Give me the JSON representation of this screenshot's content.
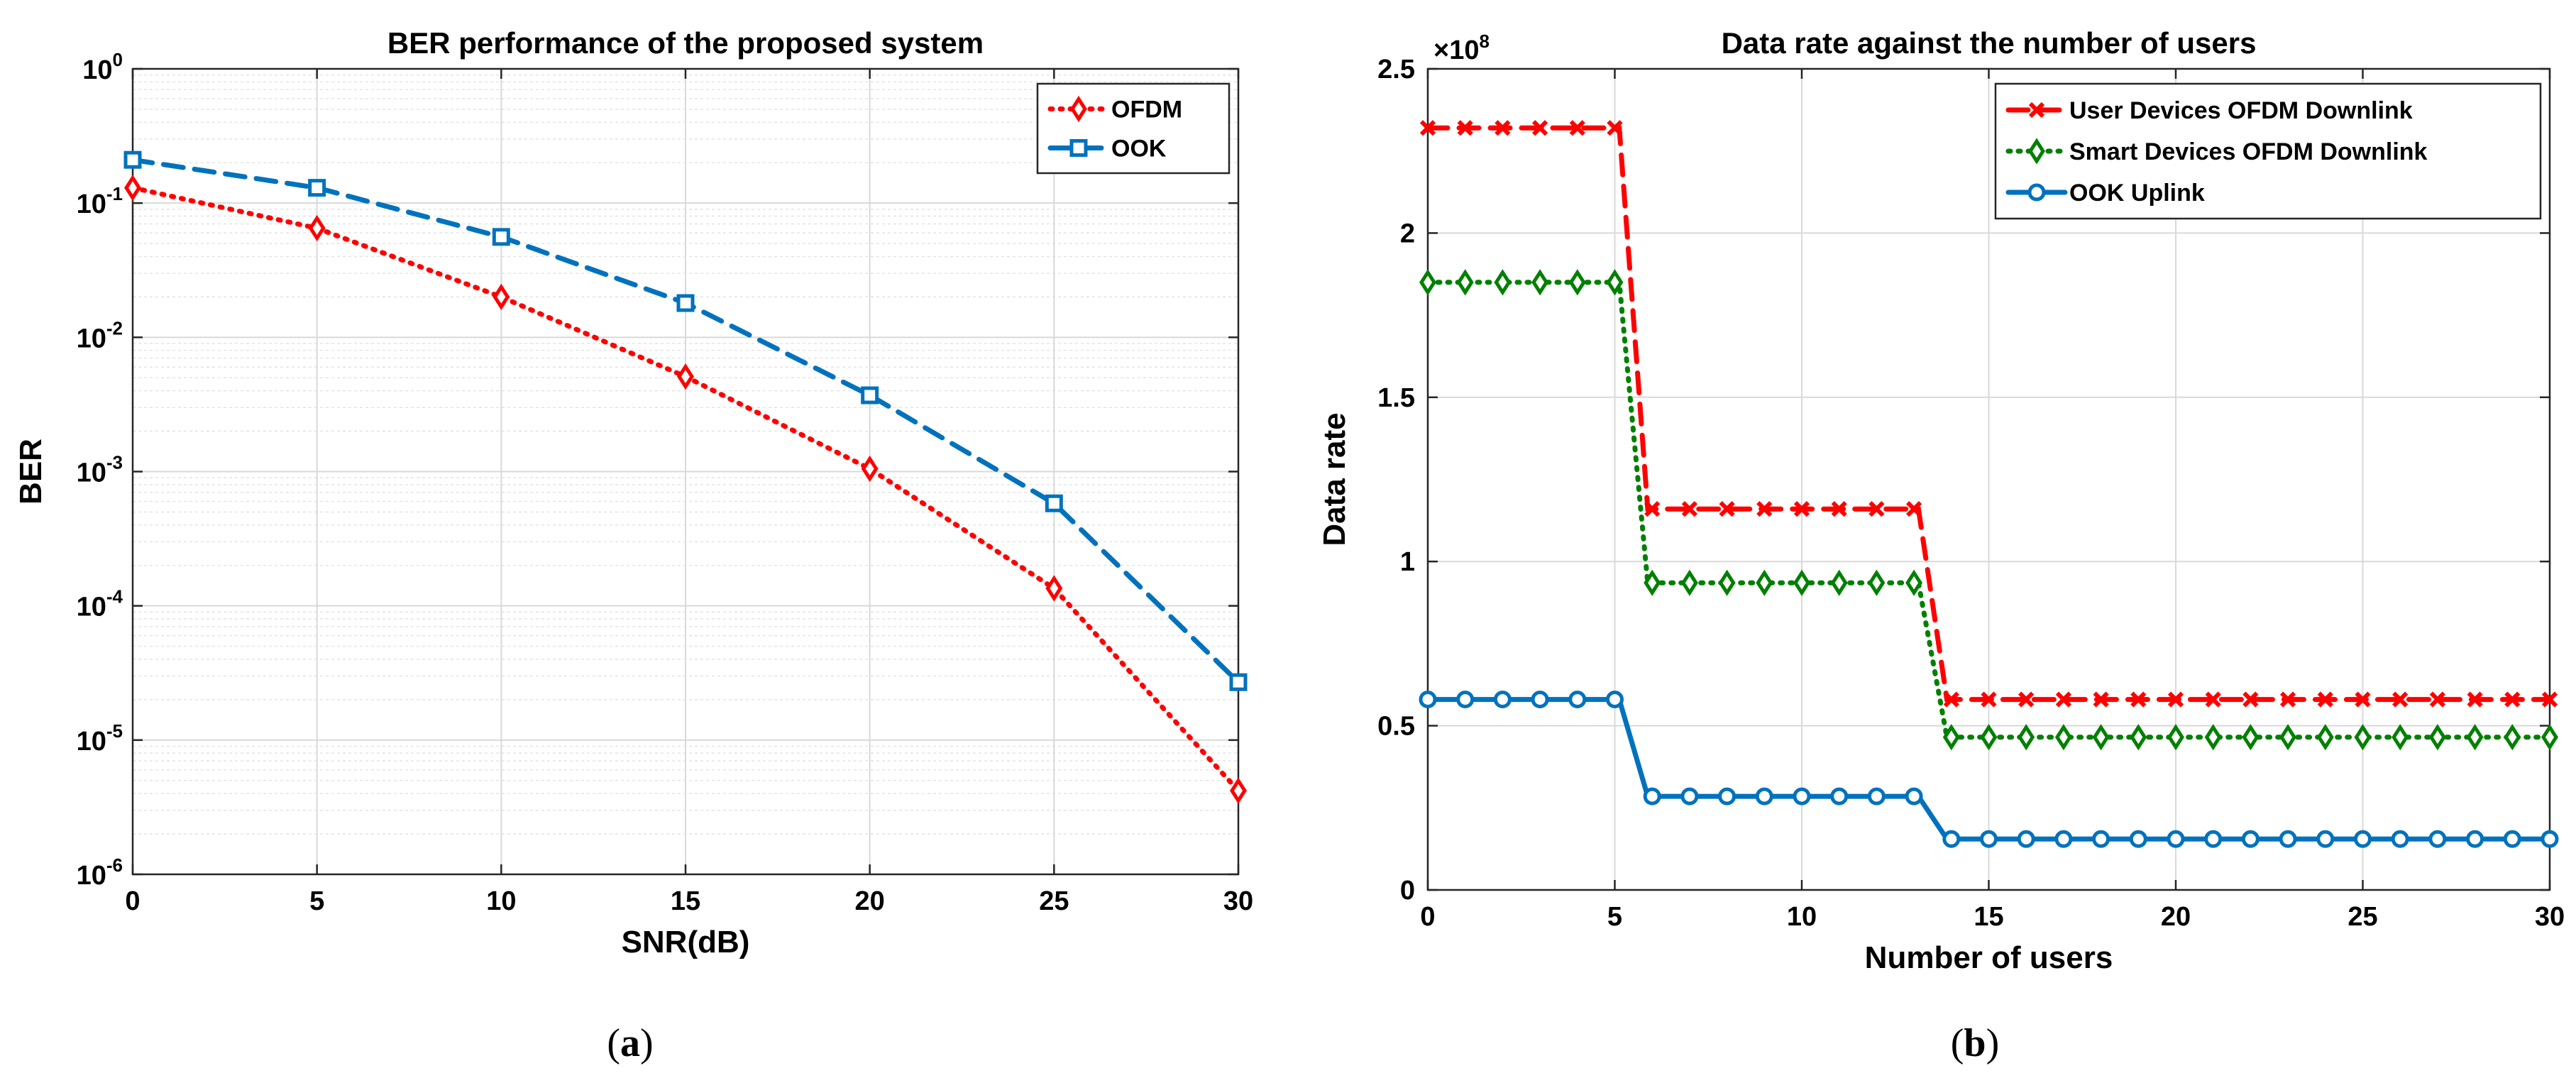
{
  "captions": [
    {
      "open": "(",
      "letter": "a",
      "close": ")"
    },
    {
      "open": "(",
      "letter": "b",
      "close": ")"
    }
  ],
  "chart_data": [
    {
      "type": "line",
      "title": "BER performance of the proposed system",
      "xlabel": "SNR(dB)",
      "ylabel": "BER",
      "yscale": "log",
      "xlim": [
        0,
        30
      ],
      "ylim": [
        1e-06,
        1
      ],
      "grid": true,
      "legend_position": "top-right",
      "x_ticks": [
        0,
        5,
        10,
        15,
        20,
        25,
        30
      ],
      "y_ticks": [
        {
          "base": "10",
          "exp": "-6",
          "value": 1e-06
        },
        {
          "base": "10",
          "exp": "-5",
          "value": 1e-05
        },
        {
          "base": "10",
          "exp": "-4",
          "value": 0.0001
        },
        {
          "base": "10",
          "exp": "-3",
          "value": 0.001
        },
        {
          "base": "10",
          "exp": "-2",
          "value": 0.01
        },
        {
          "base": "10",
          "exp": "-1",
          "value": 0.1
        },
        {
          "base": "10",
          "exp": "0",
          "value": 1
        }
      ],
      "series": [
        {
          "name": "OFDM",
          "color": "#ff0000",
          "dash": "dotted",
          "marker": "diamond",
          "x": [
            0,
            5,
            10,
            15,
            20,
            25,
            30
          ],
          "y": [
            0.13,
            0.065,
            0.02,
            0.0051,
            0.00105,
            0.000135,
            4.2e-06
          ]
        },
        {
          "name": "OOK",
          "color": "#0072bd",
          "dash": "dashed",
          "marker": "square",
          "x": [
            0,
            5,
            10,
            15,
            20,
            25,
            30
          ],
          "y": [
            0.21,
            0.13,
            0.056,
            0.018,
            0.0037,
            0.00058,
            2.7e-05
          ]
        }
      ]
    },
    {
      "type": "line",
      "title": "Data rate against the number of users",
      "xlabel": "Number of users",
      "ylabel": "Data rate",
      "yscale": "linear",
      "exponent_label": {
        "prefix": "×10",
        "exp": "8"
      },
      "scale": 100000000.0,
      "xlim": [
        0,
        30
      ],
      "ylim": [
        0,
        250000000
      ],
      "grid": true,
      "legend_position": "top-right",
      "x_ticks": [
        "0",
        "5",
        "10",
        "15",
        "20",
        "25",
        "30"
      ],
      "x_tick_values": [
        0,
        5,
        10,
        15,
        20,
        25,
        30
      ],
      "y_ticks": [
        "0",
        "0.5",
        "1",
        "1.5",
        "2",
        "2.5"
      ],
      "y_tick_values": [
        0,
        50000000,
        100000000,
        150000000,
        200000000,
        250000000
      ],
      "series": [
        {
          "name": "User Devices OFDM Downlink",
          "color": "#ff0000",
          "dash": "dashed",
          "marker": "x",
          "x": [
            0,
            1,
            2,
            3,
            4,
            5,
            6,
            7,
            8,
            9,
            10,
            11,
            12,
            13,
            14,
            15,
            16,
            17,
            18,
            19,
            20,
            21,
            22,
            23,
            24,
            25,
            26,
            27,
            28,
            29,
            30
          ],
          "y": [
            232000000,
            232000000,
            232000000,
            232000000,
            232000000,
            232000000,
            116000000,
            116000000,
            116000000,
            116000000,
            116000000,
            116000000,
            116000000,
            116000000,
            58000000,
            58000000,
            58000000,
            58000000,
            58000000,
            58000000,
            58000000,
            58000000,
            58000000,
            58000000,
            58000000,
            58000000,
            58000000,
            58000000,
            58000000,
            58000000,
            58000000
          ]
        },
        {
          "name": "Smart Devices OFDM Downlink",
          "color": "#008000",
          "dash": "dotted",
          "marker": "diamond",
          "x": [
            0,
            1,
            2,
            3,
            4,
            5,
            6,
            7,
            8,
            9,
            10,
            11,
            12,
            13,
            14,
            15,
            16,
            17,
            18,
            19,
            20,
            21,
            22,
            23,
            24,
            25,
            26,
            27,
            28,
            29,
            30
          ],
          "y": [
            185000000,
            185000000,
            185000000,
            185000000,
            185000000,
            185000000,
            93500000,
            93500000,
            93500000,
            93500000,
            93500000,
            93500000,
            93500000,
            93500000,
            46500000,
            46500000,
            46500000,
            46500000,
            46500000,
            46500000,
            46500000,
            46500000,
            46500000,
            46500000,
            46500000,
            46500000,
            46500000,
            46500000,
            46500000,
            46500000,
            46500000
          ]
        },
        {
          "name": "OOK Uplink",
          "color": "#0072bd",
          "dash": "solid",
          "marker": "circle",
          "x": [
            0,
            1,
            2,
            3,
            4,
            5,
            6,
            7,
            8,
            9,
            10,
            11,
            12,
            13,
            14,
            15,
            16,
            17,
            18,
            19,
            20,
            21,
            22,
            23,
            24,
            25,
            26,
            27,
            28,
            29,
            30
          ],
          "y": [
            58000000,
            58000000,
            58000000,
            58000000,
            58000000,
            58000000,
            28500000,
            28500000,
            28500000,
            28500000,
            28500000,
            28500000,
            28500000,
            28500000,
            15500000,
            15500000,
            15500000,
            15500000,
            15500000,
            15500000,
            15500000,
            15500000,
            15500000,
            15500000,
            15500000,
            15500000,
            15500000,
            15500000,
            15500000,
            15500000,
            15500000
          ]
        }
      ]
    }
  ]
}
